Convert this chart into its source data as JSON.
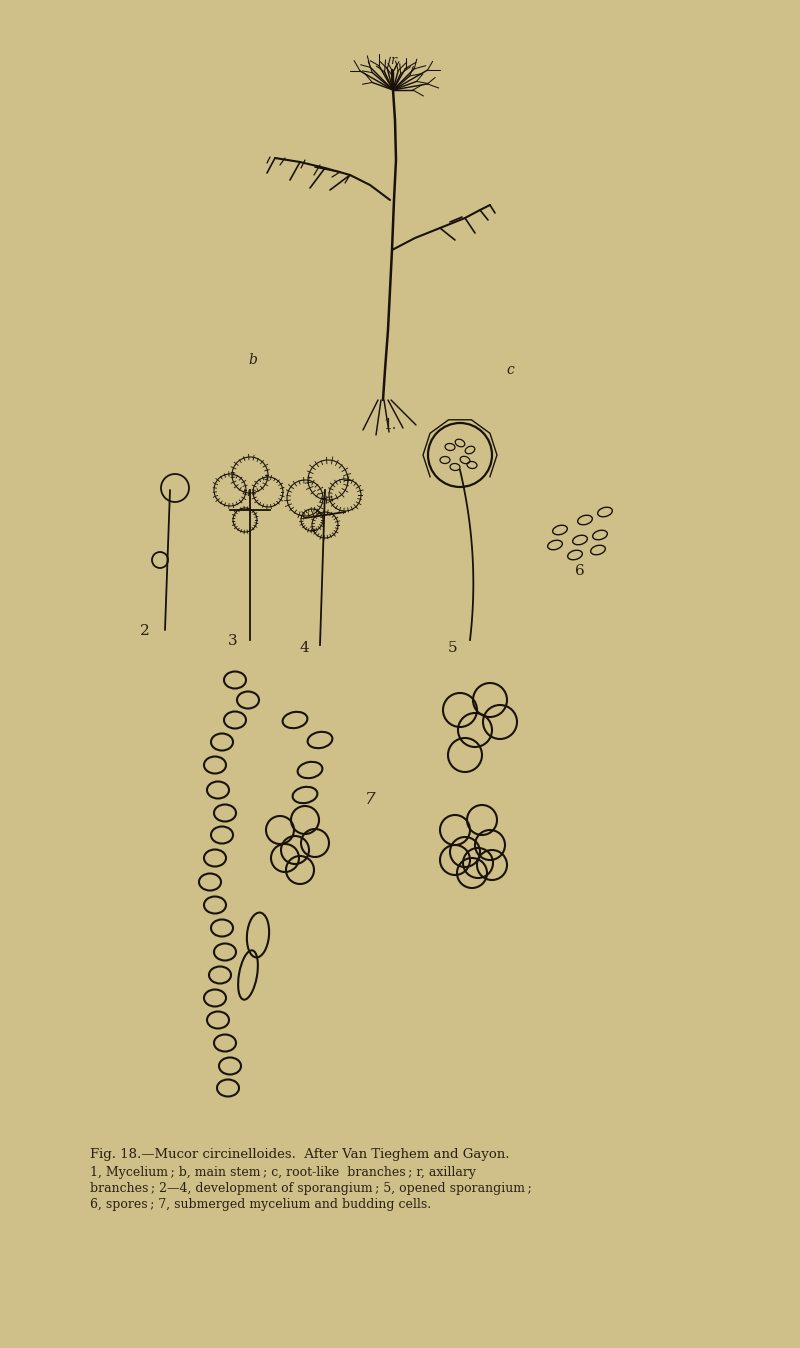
{
  "background_color": "#c8bb82",
  "fig_width": 8.0,
  "fig_height": 13.48,
  "text_color": "#2a2010",
  "caption_title": "Fig. 18.—Mucor circinelloides.  After Van Tieghem and Gayon.",
  "caption_body_1": "1, Mycelium ; b, main stem ; c, root-like  branches ; r, axillary",
  "caption_body_2": "branches ; 2—4, development of sporangium ; 5, opened sporangium ;",
  "caption_body_3": "6, spores ; 7, submerged mycelium and budding cells.",
  "line_color": "#1a1208",
  "bg_hex": "#cfc08a"
}
